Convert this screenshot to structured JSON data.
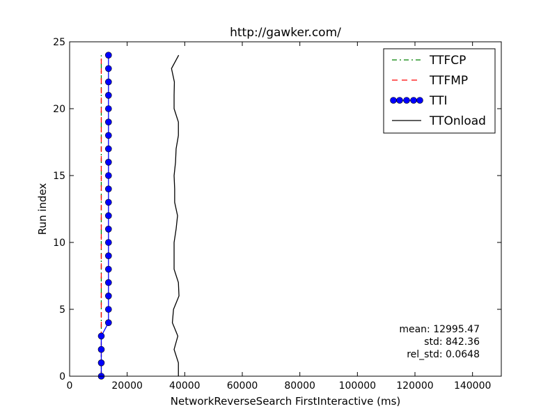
{
  "chart_data": {
    "type": "line",
    "title": "http://gawker.com/",
    "xlabel": "NetworkReverseSearch FirstInteractive (ms)",
    "ylabel": "Run index",
    "xlim": [
      0,
      150000
    ],
    "ylim": [
      0,
      25
    ],
    "x_ticks": [
      0,
      20000,
      40000,
      60000,
      80000,
      100000,
      120000,
      140000
    ],
    "y_ticks": [
      0,
      5,
      10,
      15,
      20,
      25
    ],
    "grid": false,
    "legend_position": "top-right",
    "y": [
      0,
      1,
      2,
      3,
      4,
      5,
      6,
      7,
      8,
      9,
      10,
      11,
      12,
      13,
      14,
      15,
      16,
      17,
      18,
      19,
      20,
      21,
      22,
      23,
      24
    ],
    "series": [
      {
        "name": "TTFCP",
        "color": "#008000",
        "style": "dashdot",
        "x": [
          11000,
          11000,
          11000,
          11000,
          11000,
          11000,
          11000,
          11000,
          11000,
          11000,
          11000,
          11000,
          11000,
          11000,
          11000,
          11000,
          11000,
          11000,
          11000,
          11000,
          11000,
          11000,
          11000,
          11000,
          11000
        ]
      },
      {
        "name": "TTFMP",
        "color": "#ff0000",
        "style": "dashed",
        "x": [
          11000,
          11000,
          11000,
          11000,
          11000,
          11000,
          11000,
          11000,
          11000,
          11000,
          11000,
          11000,
          11000,
          11000,
          11000,
          11000,
          11000,
          11000,
          11000,
          11000,
          11000,
          11000,
          11000,
          11000,
          11000
        ]
      },
      {
        "name": "TTI",
        "color": "#0000ff",
        "style": "solid-markers",
        "x": [
          11000,
          11000,
          11000,
          11000,
          13500,
          13500,
          13500,
          13500,
          13500,
          13500,
          13500,
          13500,
          13500,
          13500,
          13500,
          13500,
          13500,
          13500,
          13500,
          13500,
          13500,
          13500,
          13500,
          13500,
          13500
        ]
      },
      {
        "name": "TTOnload",
        "color": "#000000",
        "style": "solid",
        "x": [
          37800,
          37800,
          36300,
          37600,
          35700,
          36100,
          38000,
          37800,
          36300,
          36300,
          36300,
          37000,
          37500,
          36500,
          36500,
          36300,
          36800,
          37000,
          37800,
          37800,
          36300,
          36300,
          36400,
          35400,
          37900
        ]
      }
    ],
    "annotations": [
      "mean: 12995.47",
      "std: 842.36",
      "rel_std: 0.0648"
    ]
  }
}
